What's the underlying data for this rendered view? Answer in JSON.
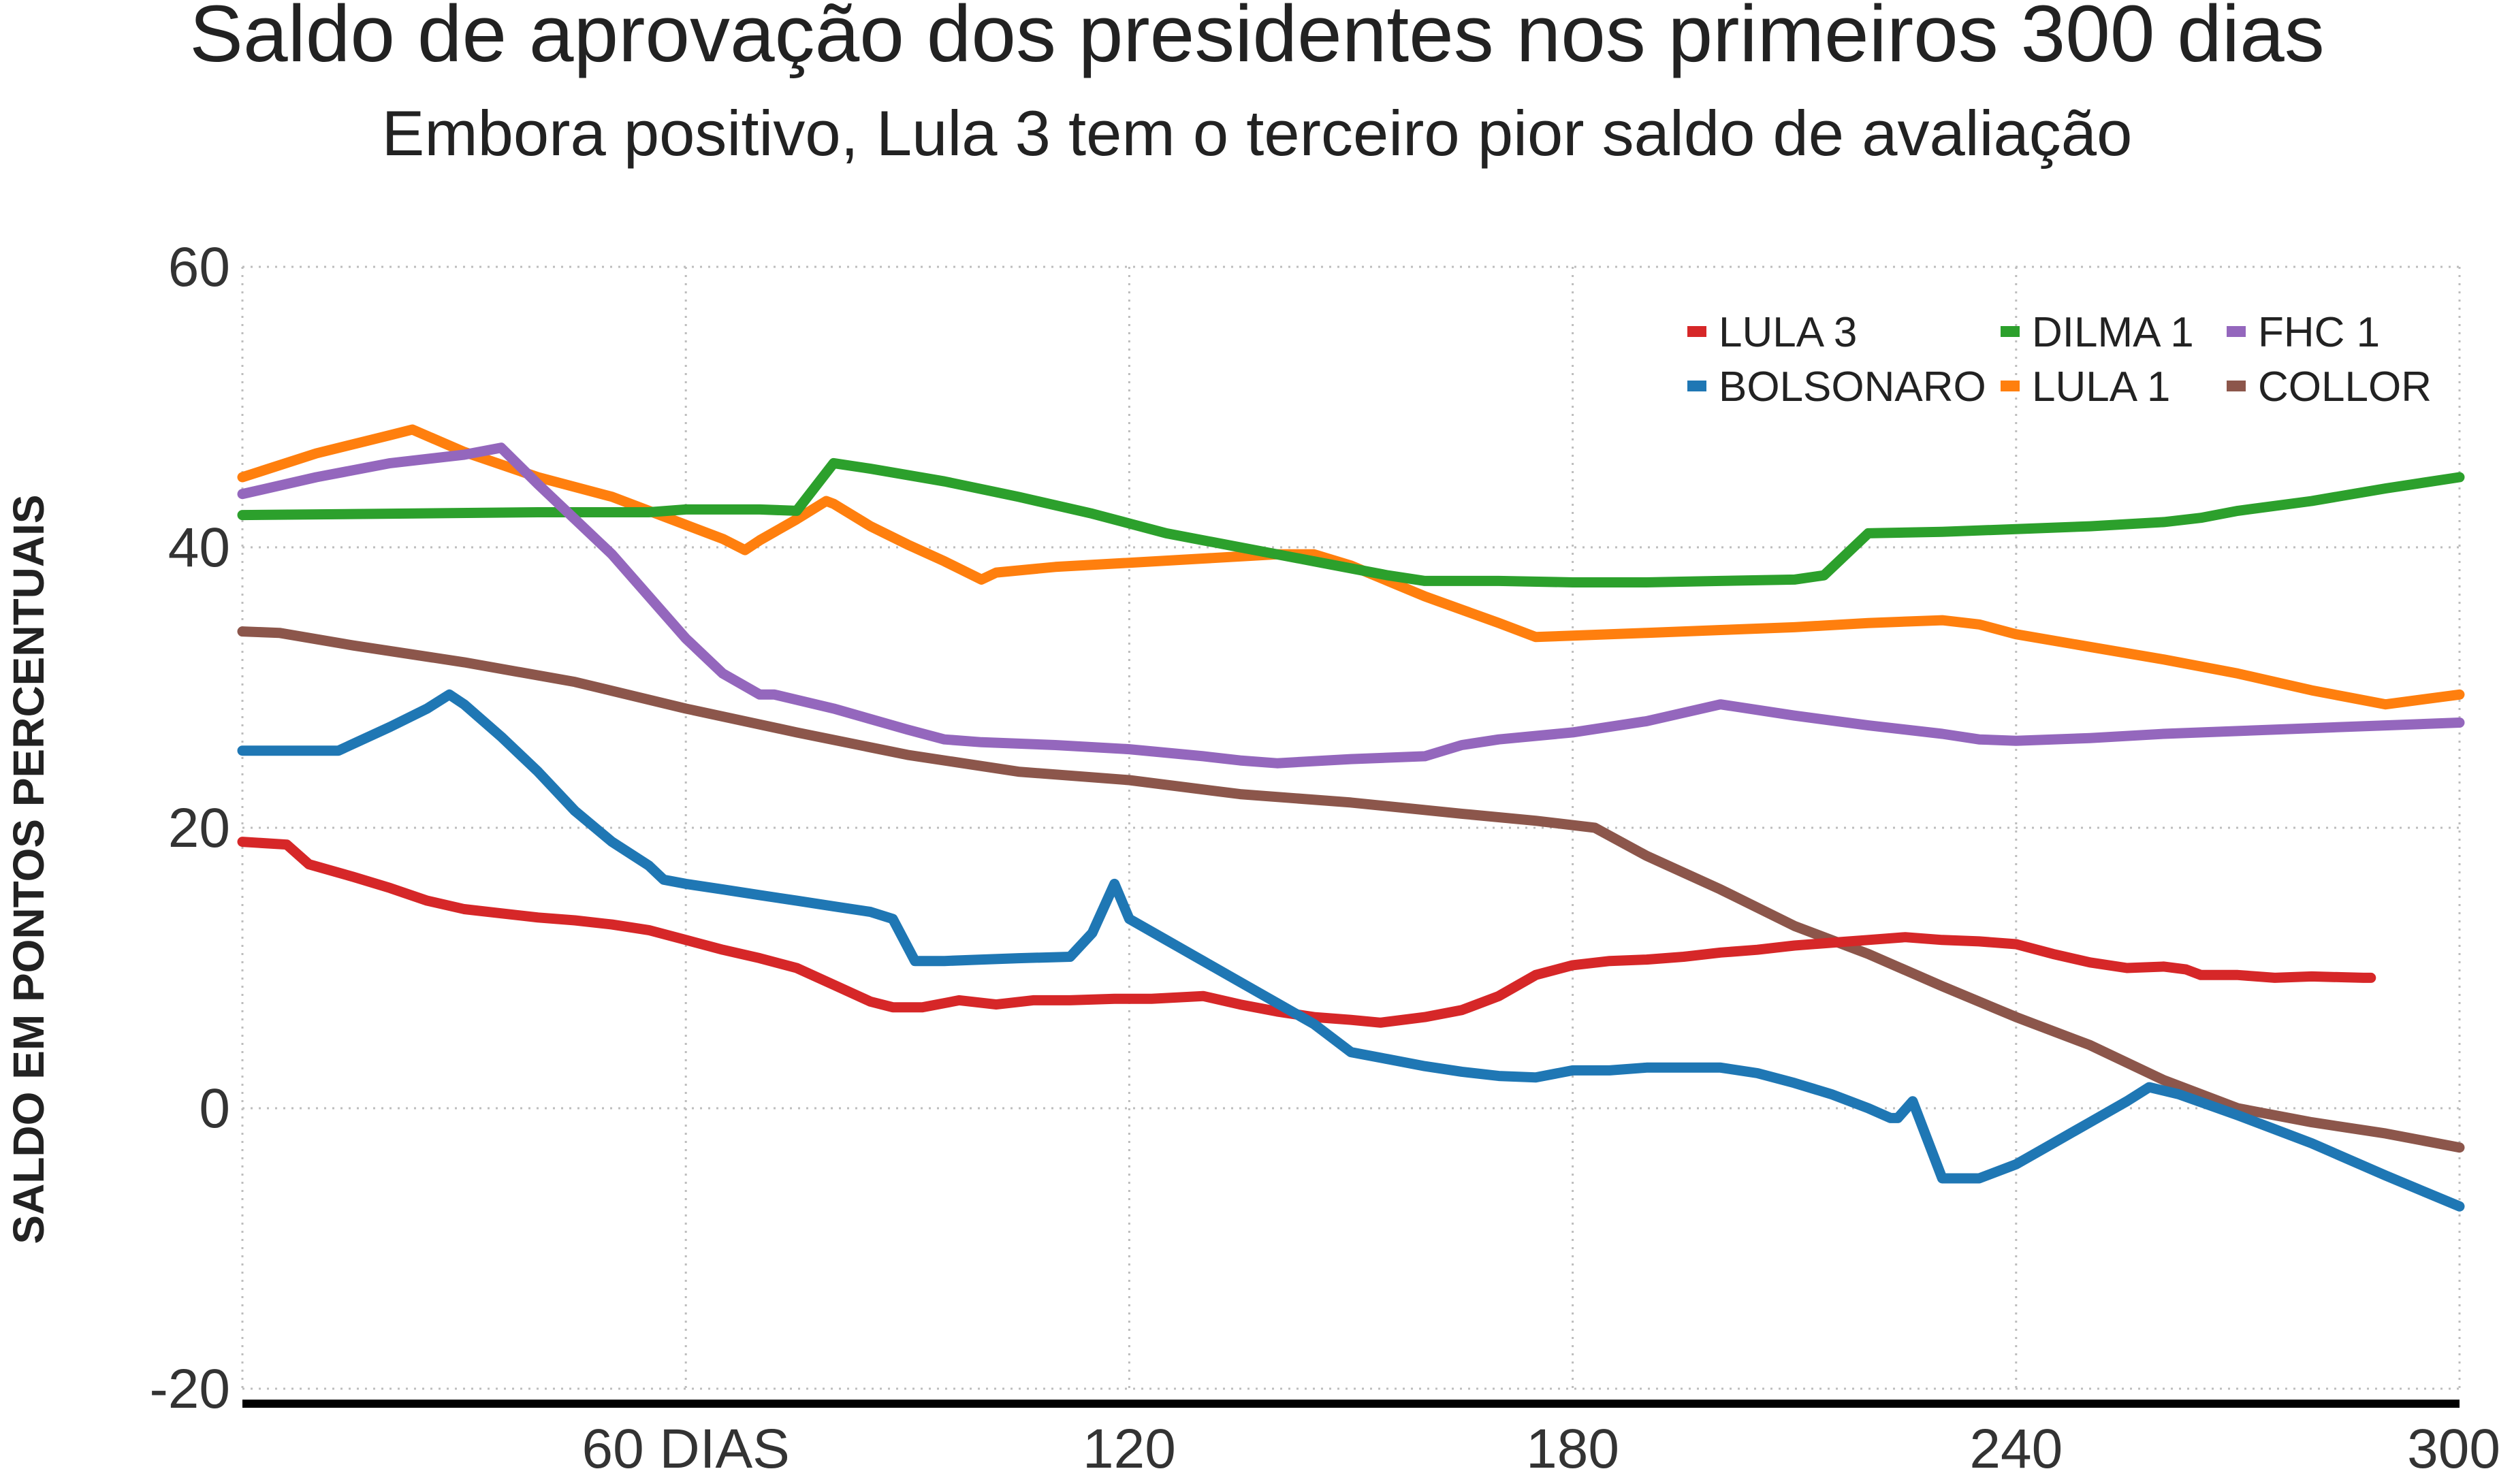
{
  "chart_data": {
    "type": "line",
    "title": "Saldo de aprovação dos presidentes nos primeiros 300 dias",
    "subtitle": "Embora positivo, Lula 3 tem o terceiro pior saldo de avaliação",
    "ylabel": "SALDO EM PONTOS PERCENTUAIS",
    "xlabel": "",
    "xlim": [
      0,
      300
    ],
    "ylim": [
      -20,
      60
    ],
    "x_ticks": [
      {
        "value": 60,
        "label": "60 DIAS"
      },
      {
        "value": 120,
        "label": "120"
      },
      {
        "value": 180,
        "label": "180"
      },
      {
        "value": 240,
        "label": "240"
      },
      {
        "value": 300,
        "label": "300"
      }
    ],
    "y_ticks": [
      {
        "value": 60,
        "label": "60"
      },
      {
        "value": 40,
        "label": "40"
      },
      {
        "value": 20,
        "label": "20"
      },
      {
        "value": 0,
        "label": "0"
      },
      {
        "value": -20,
        "label": "-20"
      }
    ],
    "grid": true,
    "legend_position": "top-right",
    "series": [
      {
        "name": "LULA 3",
        "color": "#d62728",
        "points": [
          [
            0,
            19
          ],
          [
            6,
            18.8
          ],
          [
            9,
            17.4
          ],
          [
            15,
            16.5
          ],
          [
            20,
            15.7
          ],
          [
            25,
            14.8
          ],
          [
            30,
            14.2
          ],
          [
            35,
            13.9
          ],
          [
            40,
            13.6
          ],
          [
            45,
            13.4
          ],
          [
            50,
            13.1
          ],
          [
            55,
            12.7
          ],
          [
            60,
            12
          ],
          [
            65,
            11.3
          ],
          [
            70,
            10.7
          ],
          [
            75,
            10
          ],
          [
            80,
            8.8
          ],
          [
            85,
            7.6
          ],
          [
            88,
            7.2
          ],
          [
            92,
            7.2
          ],
          [
            97,
            7.7
          ],
          [
            102,
            7.4
          ],
          [
            107,
            7.7
          ],
          [
            112,
            7.7
          ],
          [
            118,
            7.8
          ],
          [
            123,
            7.8
          ],
          [
            130,
            8
          ],
          [
            135,
            7.4
          ],
          [
            140,
            6.9
          ],
          [
            145,
            6.5
          ],
          [
            150,
            6.3
          ],
          [
            154,
            6.1
          ],
          [
            160,
            6.5
          ],
          [
            165,
            7
          ],
          [
            170,
            8
          ],
          [
            175,
            9.5
          ],
          [
            180,
            10.2
          ],
          [
            185,
            10.5
          ],
          [
            190,
            10.6
          ],
          [
            195,
            10.8
          ],
          [
            200,
            11.1
          ],
          [
            205,
            11.3
          ],
          [
            210,
            11.6
          ],
          [
            215,
            11.8
          ],
          [
            220,
            12
          ],
          [
            225,
            12.2
          ],
          [
            230,
            12
          ],
          [
            235,
            11.9
          ],
          [
            240,
            11.7
          ],
          [
            245,
            11
          ],
          [
            250,
            10.4
          ],
          [
            255,
            10
          ],
          [
            260,
            10.1
          ],
          [
            263,
            9.9
          ],
          [
            265,
            9.5
          ],
          [
            270,
            9.5
          ],
          [
            275,
            9.3
          ],
          [
            280,
            9.4
          ],
          [
            287,
            9.3
          ],
          [
            288,
            9.3
          ]
        ]
      },
      {
        "name": "DILMA 1",
        "color": "#2ca02c",
        "points": [
          [
            0,
            42.3
          ],
          [
            20,
            42.4
          ],
          [
            40,
            42.5
          ],
          [
            55,
            42.5
          ],
          [
            60,
            42.7
          ],
          [
            70,
            42.7
          ],
          [
            75,
            42.6
          ],
          [
            80,
            46
          ],
          [
            85,
            45.6
          ],
          [
            95,
            44.7
          ],
          [
            105,
            43.6
          ],
          [
            115,
            42.4
          ],
          [
            125,
            41
          ],
          [
            135,
            40
          ],
          [
            145,
            39
          ],
          [
            155,
            38
          ],
          [
            160,
            37.6
          ],
          [
            170,
            37.6
          ],
          [
            180,
            37.5
          ],
          [
            190,
            37.5
          ],
          [
            200,
            37.6
          ],
          [
            210,
            37.7
          ],
          [
            214,
            38
          ],
          [
            220,
            41
          ],
          [
            230,
            41.1
          ],
          [
            240,
            41.3
          ],
          [
            250,
            41.5
          ],
          [
            260,
            41.8
          ],
          [
            265,
            42.1
          ],
          [
            270,
            42.6
          ],
          [
            280,
            43.3
          ],
          [
            290,
            44.2
          ],
          [
            300,
            45
          ]
        ]
      },
      {
        "name": "FHC 1",
        "color": "#9467bd",
        "points": [
          [
            0,
            43.8
          ],
          [
            10,
            45
          ],
          [
            20,
            46
          ],
          [
            30,
            46.6
          ],
          [
            35,
            47.1
          ],
          [
            40,
            44.5
          ],
          [
            45,
            42
          ],
          [
            50,
            39.5
          ],
          [
            55,
            36.5
          ],
          [
            60,
            33.5
          ],
          [
            65,
            31
          ],
          [
            70,
            29.5
          ],
          [
            72,
            29.5
          ],
          [
            80,
            28.5
          ],
          [
            90,
            27
          ],
          [
            95,
            26.3
          ],
          [
            100,
            26.1
          ],
          [
            110,
            25.9
          ],
          [
            120,
            25.6
          ],
          [
            130,
            25.1
          ],
          [
            135,
            24.8
          ],
          [
            140,
            24.6
          ],
          [
            150,
            24.9
          ],
          [
            160,
            25.1
          ],
          [
            165,
            25.9
          ],
          [
            170,
            26.3
          ],
          [
            180,
            26.8
          ],
          [
            190,
            27.6
          ],
          [
            195,
            28.2
          ],
          [
            200,
            28.8
          ],
          [
            210,
            28
          ],
          [
            220,
            27.3
          ],
          [
            230,
            26.7
          ],
          [
            235,
            26.3
          ],
          [
            240,
            26.2
          ],
          [
            250,
            26.4
          ],
          [
            260,
            26.7
          ],
          [
            270,
            26.9
          ],
          [
            280,
            27.1
          ],
          [
            290,
            27.3
          ],
          [
            300,
            27.5
          ]
        ]
      },
      {
        "name": "BOLSONARO",
        "color": "#1f77b4",
        "points": [
          [
            0,
            25.5
          ],
          [
            13,
            25.5
          ],
          [
            20,
            27.2
          ],
          [
            25,
            28.5
          ],
          [
            28,
            29.5
          ],
          [
            30,
            28.8
          ],
          [
            35,
            26.5
          ],
          [
            40,
            24
          ],
          [
            45,
            21.2
          ],
          [
            50,
            19
          ],
          [
            55,
            17.3
          ],
          [
            57,
            16.3
          ],
          [
            60,
            16
          ],
          [
            65,
            15.6
          ],
          [
            70,
            15.2
          ],
          [
            75,
            14.8
          ],
          [
            80,
            14.4
          ],
          [
            85,
            14
          ],
          [
            88,
            13.5
          ],
          [
            91,
            10.5
          ],
          [
            95,
            10.5
          ],
          [
            100,
            10.6
          ],
          [
            105,
            10.7
          ],
          [
            112,
            10.8
          ],
          [
            115,
            12.5
          ],
          [
            118,
            16
          ],
          [
            120,
            13.5
          ],
          [
            125,
            12
          ],
          [
            130,
            10.5
          ],
          [
            135,
            9
          ],
          [
            140,
            7.5
          ],
          [
            145,
            6
          ],
          [
            150,
            4
          ],
          [
            155,
            3.5
          ],
          [
            160,
            3
          ],
          [
            165,
            2.6
          ],
          [
            170,
            2.3
          ],
          [
            175,
            2.2
          ],
          [
            180,
            2.7
          ],
          [
            185,
            2.7
          ],
          [
            190,
            2.9
          ],
          [
            195,
            2.9
          ],
          [
            200,
            2.9
          ],
          [
            205,
            2.5
          ],
          [
            210,
            1.8
          ],
          [
            215,
            1
          ],
          [
            220,
            0
          ],
          [
            223,
            -0.7
          ],
          [
            224,
            -0.7
          ],
          [
            226,
            0.5
          ],
          [
            230,
            -5
          ],
          [
            235,
            -5
          ],
          [
            240,
            -4
          ],
          [
            245,
            -2.5
          ],
          [
            250,
            -1
          ],
          [
            255,
            0.5
          ],
          [
            258,
            1.5
          ],
          [
            262,
            1
          ],
          [
            270,
            -0.5
          ],
          [
            280,
            -2.5
          ],
          [
            290,
            -4.8
          ],
          [
            300,
            -7
          ]
        ]
      },
      {
        "name": "LULA 1",
        "color": "#ff7f0e",
        "points": [
          [
            0,
            45
          ],
          [
            10,
            46.7
          ],
          [
            20,
            48
          ],
          [
            23,
            48.4
          ],
          [
            30,
            46.8
          ],
          [
            40,
            45
          ],
          [
            50,
            43.6
          ],
          [
            60,
            41.6
          ],
          [
            65,
            40.6
          ],
          [
            68,
            39.8
          ],
          [
            70,
            40.5
          ],
          [
            75,
            42
          ],
          [
            79,
            43.3
          ],
          [
            80,
            43.1
          ],
          [
            85,
            41.5
          ],
          [
            90,
            40.2
          ],
          [
            95,
            39
          ],
          [
            100,
            37.7
          ],
          [
            102,
            38.2
          ],
          [
            110,
            38.6
          ],
          [
            120,
            38.9
          ],
          [
            130,
            39.2
          ],
          [
            140,
            39.5
          ],
          [
            145,
            39.5
          ],
          [
            150,
            38.7
          ],
          [
            160,
            36.5
          ],
          [
            170,
            34.6
          ],
          [
            175,
            33.6
          ],
          [
            180,
            33.7
          ],
          [
            190,
            33.9
          ],
          [
            200,
            34.1
          ],
          [
            210,
            34.3
          ],
          [
            220,
            34.6
          ],
          [
            230,
            34.8
          ],
          [
            235,
            34.5
          ],
          [
            240,
            33.8
          ],
          [
            250,
            32.9
          ],
          [
            260,
            32
          ],
          [
            270,
            31
          ],
          [
            280,
            29.8
          ],
          [
            288,
            29
          ],
          [
            290,
            28.8
          ],
          [
            300,
            29.5
          ]
        ]
      },
      {
        "name": "COLLOR",
        "color": "#8c564b",
        "points": [
          [
            0,
            34
          ],
          [
            5,
            33.9
          ],
          [
            15,
            33
          ],
          [
            30,
            31.8
          ],
          [
            45,
            30.4
          ],
          [
            60,
            28.5
          ],
          [
            75,
            26.8
          ],
          [
            90,
            25.2
          ],
          [
            105,
            24
          ],
          [
            120,
            23.4
          ],
          [
            135,
            22.4
          ],
          [
            150,
            21.8
          ],
          [
            165,
            21
          ],
          [
            175,
            20.5
          ],
          [
            183,
            20
          ],
          [
            190,
            18
          ],
          [
            200,
            15.6
          ],
          [
            210,
            13
          ],
          [
            220,
            11
          ],
          [
            230,
            8.7
          ],
          [
            240,
            6.5
          ],
          [
            250,
            4.5
          ],
          [
            260,
            2
          ],
          [
            270,
            0
          ],
          [
            280,
            -1
          ],
          [
            290,
            -1.8
          ],
          [
            300,
            -2.8
          ]
        ]
      }
    ]
  }
}
